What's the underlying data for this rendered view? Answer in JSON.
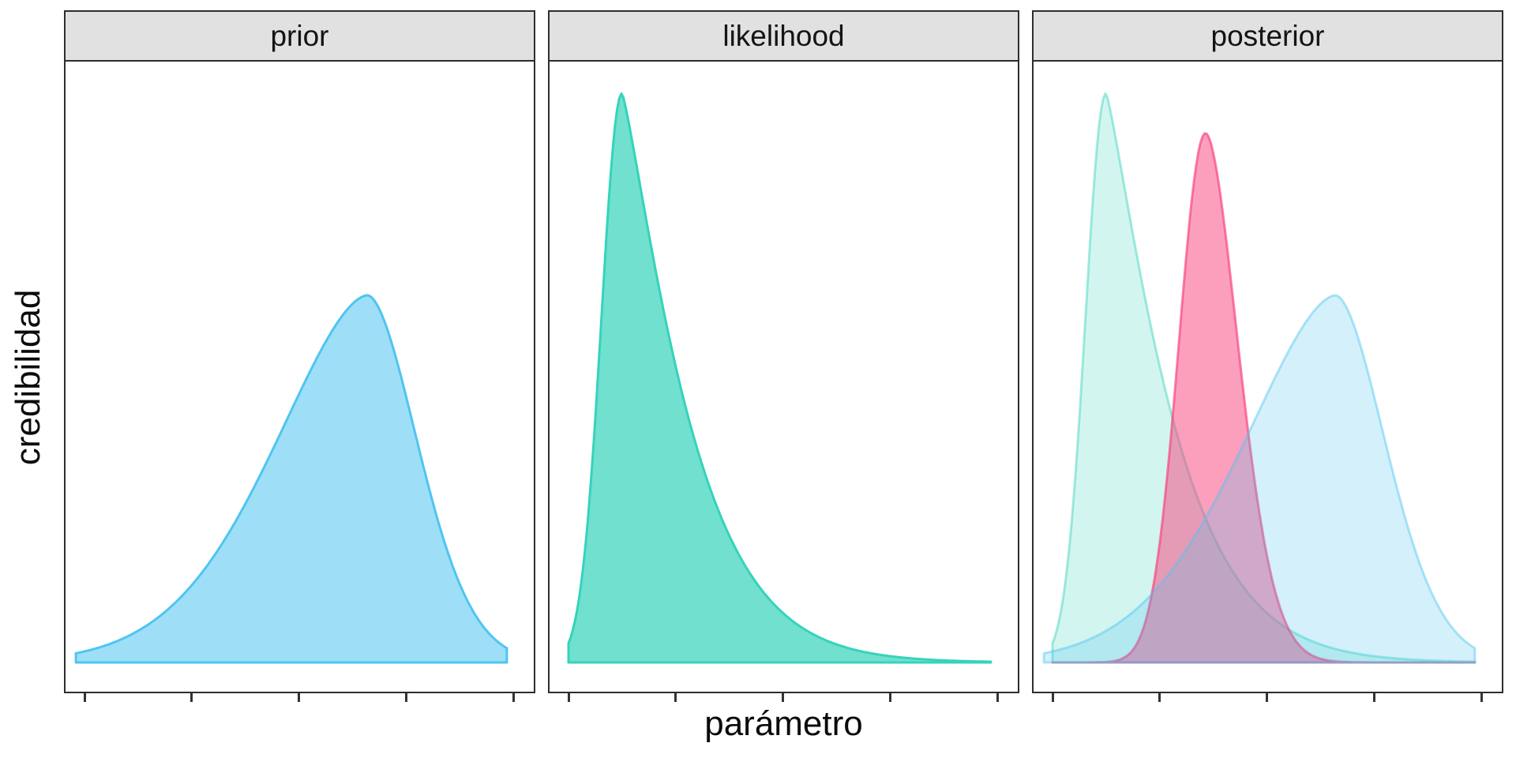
{
  "figure": {
    "x_label": "parámetro",
    "y_label": "credibilidad",
    "facets": [
      {
        "label": "prior",
        "curves": [
          "prior_blue"
        ]
      },
      {
        "label": "likelihood",
        "curves": [
          "likelihood_teal"
        ]
      },
      {
        "label": "posterior",
        "curves": [
          "posterior_mint",
          "posterior_pink",
          "posterior_blue"
        ]
      }
    ]
  },
  "chart_data": {
    "type": "area",
    "subtype": "faceted-density-curves",
    "title": "",
    "xlabel": "parámetro",
    "ylabel": "credibilidad",
    "grid": false,
    "legend": false,
    "facet_labels": [
      "prior",
      "likelihood",
      "posterior"
    ],
    "x_axis": {
      "range": [
        0,
        1
      ],
      "ticks": [
        0,
        0.25,
        0.5,
        0.75,
        1
      ],
      "tick_labels_shown": false
    },
    "y_axis": {
      "range": [
        0,
        1
      ],
      "tick_labels_shown": false,
      "note": "peak_height is density relative to tallest curve (likelihood = 1.0)"
    },
    "curves": {
      "prior_blue": {
        "series": "prior",
        "facet": "prior",
        "color": "#4FC5F1",
        "fill_opacity": 0.55,
        "stroke_opacity": 1,
        "peak_x": 0.66,
        "peak_height": 0.645,
        "sigma_left": 0.21,
        "sigma_right": 0.115,
        "power_left": 1.7,
        "power_right": 1.8,
        "u_start": -0.02,
        "u_end": 0.985,
        "shape": "left-skewed bell"
      },
      "likelihood_teal": {
        "series": "likelihood",
        "facet": "likelihood",
        "color": "#35D3BB",
        "fill_opacity": 0.7,
        "stroke_opacity": 1,
        "peak_x": 0.125,
        "peak_height": 1.0,
        "sigma_left": 0.048,
        "sigma_right": 0.1,
        "power_left": 2,
        "power_right": 1.2,
        "u_start": 0.0,
        "u_end": 0.985,
        "shape": "right-skewed, sharp peak near left, long right tail"
      },
      "posterior_mint": {
        "series": "likelihood (overlaid)",
        "facet": "posterior",
        "color": "#35D3BB",
        "fill_opacity": 0.22,
        "stroke_opacity": 0.45,
        "peak_x": 0.125,
        "peak_height": 1.0,
        "sigma_left": 0.048,
        "sigma_right": 0.1,
        "power_left": 2,
        "power_right": 1.2,
        "u_start": 0.0,
        "u_end": 0.985,
        "shape": "same as likelihood, faded"
      },
      "posterior_pink": {
        "series": "posterior",
        "facet": "posterior",
        "color": "#F73F7B",
        "fill_opacity": 0.5,
        "stroke_opacity": 0.65,
        "peak_x": 0.357,
        "peak_height": 0.93,
        "sigma_left": 0.062,
        "sigma_right": 0.075,
        "power_left": 2,
        "power_right": 1.8,
        "u_start": 0.0,
        "u_end": 0.985,
        "shape": "bell between likelihood and prior peaks"
      },
      "posterior_blue": {
        "series": "prior (overlaid)",
        "facet": "posterior",
        "color": "#4FC5F1",
        "fill_opacity": 0.25,
        "stroke_opacity": 0.45,
        "peak_x": 0.66,
        "peak_height": 0.645,
        "sigma_left": 0.21,
        "sigma_right": 0.115,
        "power_left": 1.7,
        "power_right": 1.8,
        "u_start": -0.02,
        "u_end": 0.985,
        "shape": "same as prior, faded"
      }
    }
  },
  "style": {
    "strip_background": "#E1E1E1",
    "panel_border": "#2E2E2E",
    "tick_color": "#333333",
    "text_color": "#0B0B0B",
    "panel_background": "#FFFFFF",
    "stroke_width": 3
  }
}
